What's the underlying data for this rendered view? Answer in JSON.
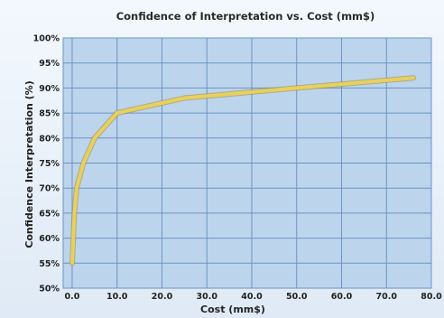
{
  "chart_data": {
    "type": "line",
    "title": "Confidence of Interpretation vs. Cost (mm$)",
    "xlabel": "Cost (mm$)",
    "ylabel": "Confidence Interpretation (%)",
    "xlim": [
      -2,
      80
    ],
    "ylim": [
      50,
      100
    ],
    "x_ticks": [
      0,
      10,
      20,
      30,
      40,
      50,
      60,
      70,
      80
    ],
    "x_tick_labels": [
      "0.0",
      "10.0",
      "20.0",
      "30.0",
      "40.0",
      "50.0",
      "60.0",
      "70.0",
      "80.0"
    ],
    "y_ticks": [
      50,
      55,
      60,
      65,
      70,
      75,
      80,
      85,
      90,
      95,
      100
    ],
    "y_tick_labels": [
      "50%",
      "55%",
      "60%",
      "65%",
      "70%",
      "75%",
      "80%",
      "85%",
      "90%",
      "95%",
      "100%"
    ],
    "grid": true,
    "legend": "none",
    "series": [
      {
        "x": [
          0,
          0.5,
          1,
          2.5,
          5,
          10,
          25,
          50,
          76
        ],
        "values": [
          55,
          65,
          70,
          75,
          80,
          85,
          88,
          90,
          92
        ],
        "color": "#e8d060"
      }
    ],
    "colors": {
      "plot_bg": "#bcd4ec",
      "grid": "#6d93c7",
      "line": "#e8d060",
      "line_edge": "#a08a2a"
    }
  }
}
